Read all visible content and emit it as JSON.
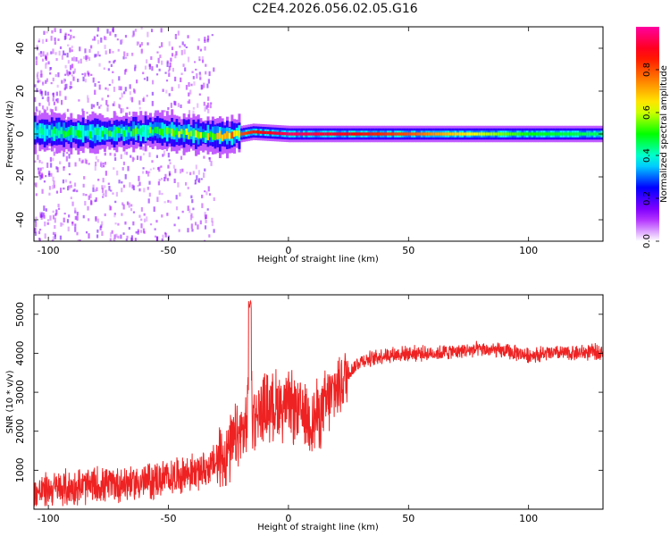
{
  "figure_title": "C2E4.2026.056.02.05.G16",
  "chart_data": [
    {
      "type": "heatmap",
      "title": "",
      "xlabel": "Height of straight line (km)",
      "ylabel": "Frequency (Hz)",
      "xlim": [
        -106,
        131
      ],
      "ylim": [
        -50,
        50
      ],
      "xticks": [
        -100,
        -50,
        0,
        50,
        100
      ],
      "yticks": [
        -40,
        -20,
        0,
        20,
        40
      ],
      "colorbar": {
        "label": "Normalized spectral amplitude",
        "range": [
          0,
          1
        ],
        "ticks": [
          0.0,
          0.2,
          0.4,
          0.6,
          0.8
        ],
        "colors": [
          "#ffffff",
          "#a000ff",
          "#0000ff",
          "#00ffff",
          "#00ff00",
          "#ffff00",
          "#ff8000",
          "#ff0000",
          "#ff00a0"
        ]
      },
      "trace": {
        "description": "Main spectral line near 0 Hz",
        "x": [
          -106,
          -80,
          -55,
          -40,
          -25,
          -15,
          0,
          20,
          50,
          80,
          100,
          131
        ],
        "center_hz": [
          1,
          0.5,
          1.5,
          0,
          -1,
          1,
          0,
          0,
          0,
          0,
          0,
          0
        ],
        "peak_amplitude": [
          0.45,
          0.5,
          0.55,
          0.6,
          0.75,
          0.85,
          0.95,
          0.9,
          0.8,
          0.6,
          0.5,
          0.45
        ]
      }
    },
    {
      "type": "line",
      "title": "",
      "xlabel": "Height of straight line (km)",
      "ylabel": "SNR (10 * v/v)",
      "xlim": [
        -106,
        131
      ],
      "ylim": [
        0,
        5500
      ],
      "xticks": [
        -100,
        -50,
        0,
        50,
        100
      ],
      "yticks": [
        1000,
        2000,
        3000,
        4000,
        5000
      ],
      "series": [
        {
          "name": "SNR",
          "color": "#ee2222",
          "x": [
            -106,
            -100,
            -90,
            -80,
            -70,
            -60,
            -50,
            -45,
            -40,
            -35,
            -30,
            -25,
            -20,
            -17,
            -16,
            -15,
            -10,
            -5,
            0,
            5,
            10,
            15,
            20,
            25,
            30,
            40,
            50,
            60,
            70,
            80,
            90,
            100,
            110,
            120,
            131
          ],
          "y": [
            400,
            500,
            550,
            600,
            650,
            700,
            800,
            900,
            950,
            1000,
            1200,
            1500,
            1900,
            2200,
            5400,
            2400,
            2600,
            2700,
            2650,
            2500,
            2300,
            2600,
            3100,
            3500,
            3800,
            3950,
            4000,
            4000,
            4050,
            4100,
            4050,
            3950,
            4000,
            4000,
            4050
          ]
        }
      ]
    }
  ]
}
